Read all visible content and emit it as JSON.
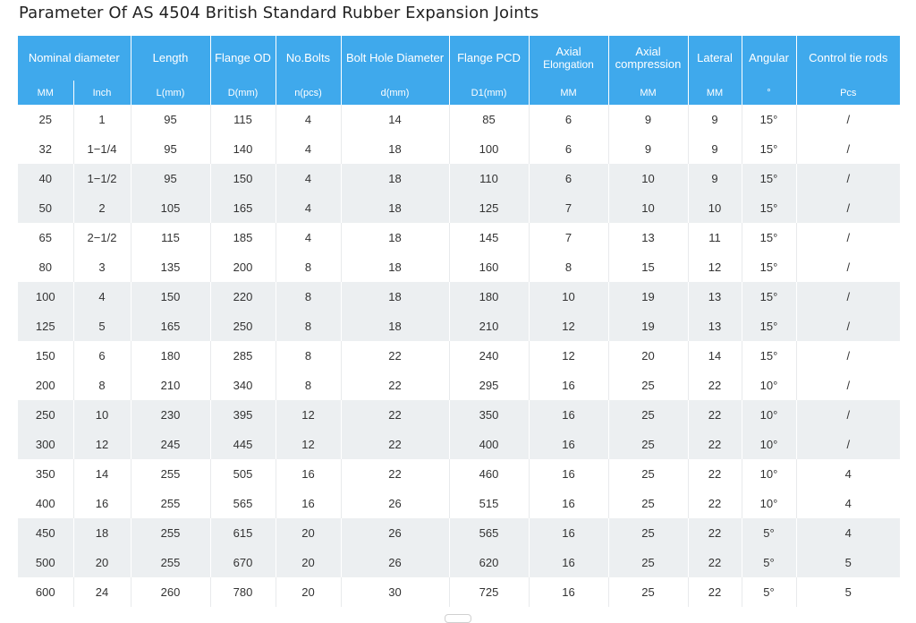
{
  "title": "Parameter Of AS 4504 British Standard Rubber Expansion Joints",
  "headers": [
    {
      "label": "Nominal diameter",
      "colspan": 2
    },
    {
      "label": "Length"
    },
    {
      "label": "Flange OD"
    },
    {
      "label": "No.Bolts"
    },
    {
      "label": "Bolt Hole Diameter"
    },
    {
      "label": "Flange PCD"
    },
    {
      "label": "Axial Elongation",
      "line1": "Axial",
      "line2": "Elongation"
    },
    {
      "label": "Axial compression",
      "line1": "Axial",
      "line2": "compression"
    },
    {
      "label": "Lateral"
    },
    {
      "label": "Angular"
    },
    {
      "label": "Control tie rods"
    }
  ],
  "units": [
    "MM",
    "Inch",
    "L(mm)",
    "D(mm)",
    "n(pcs)",
    "d(mm)",
    "D1(mm)",
    "MM",
    "MM",
    "MM",
    "°",
    "Pcs"
  ],
  "rows": [
    [
      "25",
      "1",
      "95",
      "115",
      "4",
      "14",
      "85",
      "6",
      "9",
      "9",
      "15°",
      "/"
    ],
    [
      "32",
      "1−1/4",
      "95",
      "140",
      "4",
      "18",
      "100",
      "6",
      "9",
      "9",
      "15°",
      "/"
    ],
    [
      "40",
      "1−1/2",
      "95",
      "150",
      "4",
      "18",
      "110",
      "6",
      "10",
      "9",
      "15°",
      "/"
    ],
    [
      "50",
      "2",
      "105",
      "165",
      "4",
      "18",
      "125",
      "7",
      "10",
      "10",
      "15°",
      "/"
    ],
    [
      "65",
      "2−1/2",
      "115",
      "185",
      "4",
      "18",
      "145",
      "7",
      "13",
      "11",
      "15°",
      "/"
    ],
    [
      "80",
      "3",
      "135",
      "200",
      "8",
      "18",
      "160",
      "8",
      "15",
      "12",
      "15°",
      "/"
    ],
    [
      "100",
      "4",
      "150",
      "220",
      "8",
      "18",
      "180",
      "10",
      "19",
      "13",
      "15°",
      "/"
    ],
    [
      "125",
      "5",
      "165",
      "250",
      "8",
      "18",
      "210",
      "12",
      "19",
      "13",
      "15°",
      "/"
    ],
    [
      "150",
      "6",
      "180",
      "285",
      "8",
      "22",
      "240",
      "12",
      "20",
      "14",
      "15°",
      "/"
    ],
    [
      "200",
      "8",
      "210",
      "340",
      "8",
      "22",
      "295",
      "16",
      "25",
      "22",
      "10°",
      "/"
    ],
    [
      "250",
      "10",
      "230",
      "395",
      "12",
      "22",
      "350",
      "16",
      "25",
      "22",
      "10°",
      "/"
    ],
    [
      "300",
      "12",
      "245",
      "445",
      "12",
      "22",
      "400",
      "16",
      "25",
      "22",
      "10°",
      "/"
    ],
    [
      "350",
      "14",
      "255",
      "505",
      "16",
      "22",
      "460",
      "16",
      "25",
      "22",
      "10°",
      "4"
    ],
    [
      "400",
      "16",
      "255",
      "565",
      "16",
      "26",
      "515",
      "16",
      "25",
      "22",
      "10°",
      "4"
    ],
    [
      "450",
      "18",
      "255",
      "615",
      "20",
      "26",
      "565",
      "16",
      "25",
      "22",
      "5°",
      "4"
    ],
    [
      "500",
      "20",
      "255",
      "670",
      "20",
      "26",
      "620",
      "16",
      "25",
      "22",
      "5°",
      "5"
    ],
    [
      "600",
      "24",
      "260",
      "780",
      "20",
      "30",
      "725",
      "16",
      "25",
      "22",
      "5°",
      "5"
    ]
  ],
  "colors": {
    "header_bg": "#3fa9ec",
    "shaded_row_bg": "#eceff1",
    "text": "#333333"
  }
}
